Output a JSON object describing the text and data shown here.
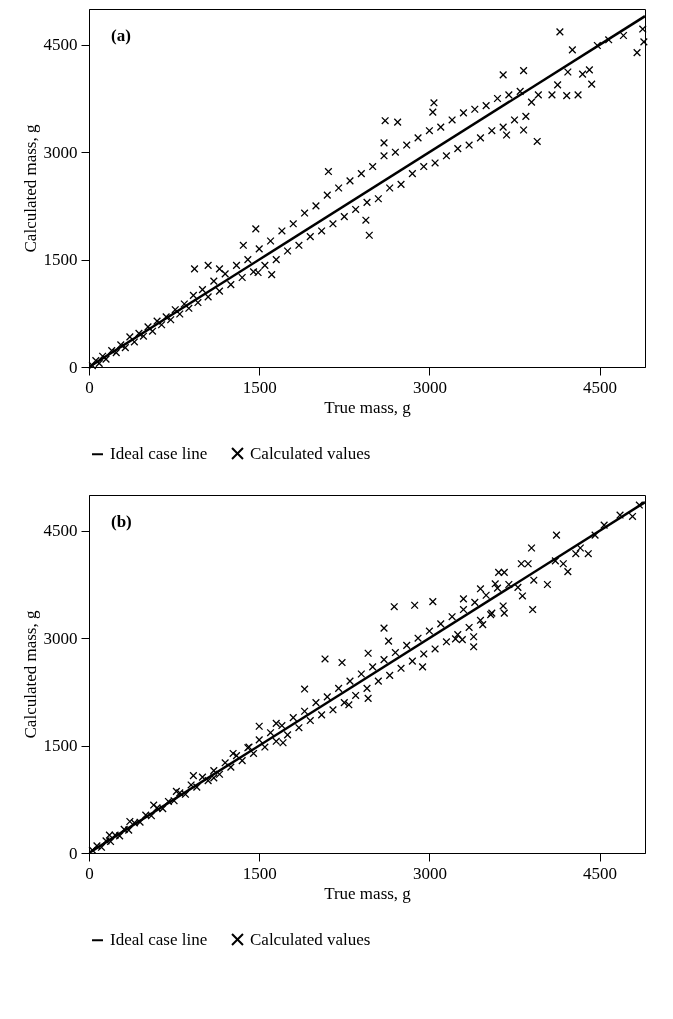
{
  "chart_data": [
    {
      "type": "scatter",
      "title": "(a)",
      "xlabel": "True mass, g",
      "ylabel": "Calculated mass, g",
      "xlim": [
        0,
        4900
      ],
      "ylim": [
        0,
        5000
      ],
      "xticks": [
        0,
        1500,
        3000,
        4500
      ],
      "yticks": [
        0,
        1500,
        3000,
        4500
      ],
      "legend": "bottom",
      "series": [
        {
          "name": "Ideal case line",
          "type": "line",
          "color": "#000000",
          "x": [
            0,
            4900
          ],
          "values": [
            0,
            4900
          ]
        },
        {
          "name": "Calculated values",
          "type": "scatter",
          "marker": "cross",
          "color": "#000000",
          "x": [
            30,
            60,
            90,
            120,
            150,
            200,
            240,
            280,
            320,
            360,
            400,
            440,
            480,
            520,
            560,
            600,
            640,
            680,
            720,
            760,
            800,
            840,
            880,
            920,
            960,
            1000,
            1050,
            1100,
            1150,
            1200,
            1250,
            1300,
            1350,
            1400,
            1450,
            1500,
            1550,
            1600,
            1650,
            1700,
            1750,
            1800,
            1850,
            1900,
            1950,
            2000,
            2050,
            2100,
            2150,
            2200,
            2250,
            2300,
            2350,
            2400,
            2450,
            2500,
            2550,
            2600,
            2650,
            2700,
            2750,
            2800,
            2850,
            2900,
            2950,
            3000,
            3050,
            3100,
            3150,
            3200,
            3250,
            3300,
            3350,
            3400,
            3450,
            3500,
            3550,
            3600,
            3650,
            3700,
            3750,
            3800,
            3850,
            3900,
            3650,
            3830,
            4150,
            4260,
            4480,
            4580,
            4710,
            4880,
            4890,
            4830,
            4430,
            4350,
            4410,
            4210,
            4310,
            4080,
            3960,
            4130,
            4220,
            3950,
            3830,
            3680,
            3040,
            3030,
            2610,
            2720,
            2600,
            2470,
            2440,
            2110,
            1610,
            1490,
            1470,
            1360,
            930,
            1050,
            1150
          ],
          "values": [
            20,
            90,
            50,
            150,
            110,
            230,
            200,
            310,
            270,
            420,
            350,
            470,
            430,
            560,
            500,
            640,
            590,
            700,
            660,
            800,
            740,
            880,
            820,
            1000,
            900,
            1080,
            980,
            1200,
            1060,
            1300,
            1150,
            1420,
            1250,
            1500,
            1330,
            1650,
            1420,
            1760,
            1500,
            1900,
            1620,
            2000,
            1700,
            2150,
            1820,
            2250,
            1900,
            2400,
            2000,
            2500,
            2100,
            2600,
            2200,
            2700,
            2300,
            2800,
            2350,
            2950,
            2500,
            3000,
            2550,
            3100,
            2700,
            3200,
            2800,
            3300,
            2850,
            3350,
            2950,
            3450,
            3050,
            3550,
            3100,
            3600,
            3200,
            3650,
            3300,
            3750,
            3350,
            3800,
            3450,
            3850,
            3500,
            3700,
            4080,
            4140,
            4680,
            4430,
            4490,
            4570,
            4630,
            4720,
            4540,
            4390,
            3950,
            4090,
            4150,
            3790,
            3800,
            3800,
            3800,
            3940,
            4120,
            3150,
            3310,
            3240,
            3690,
            3560,
            3440,
            3420,
            3130,
            1840,
            2050,
            2730,
            1290,
            1320,
            1930,
            1700,
            1370,
            1420,
            1370
          ]
        }
      ]
    },
    {
      "type": "scatter",
      "title": "(b)",
      "xlabel": "True mass, g",
      "ylabel": "Calculated mass, g",
      "xlim": [
        0,
        4900
      ],
      "ylim": [
        0,
        5000
      ],
      "xticks": [
        0,
        1500,
        3000,
        4500
      ],
      "yticks": [
        0,
        1500,
        3000,
        4500
      ],
      "legend": "bottom",
      "series": [
        {
          "name": "Ideal case line",
          "type": "line",
          "color": "#000000",
          "x": [
            0,
            4900
          ],
          "values": [
            0,
            4900
          ]
        },
        {
          "name": "Calculated values",
          "type": "scatter",
          "marker": "cross",
          "color": "#000000",
          "x": [
            30,
            70,
            110,
            150,
            190,
            230,
            270,
            310,
            350,
            400,
            450,
            500,
            550,
            600,
            650,
            700,
            750,
            800,
            850,
            900,
            950,
            1000,
            1050,
            1100,
            1150,
            1200,
            1250,
            1300,
            1350,
            1400,
            1450,
            1500,
            1550,
            1600,
            1650,
            1700,
            1750,
            1800,
            1850,
            1900,
            1950,
            2000,
            2050,
            2100,
            2150,
            2200,
            2250,
            2300,
            2350,
            2400,
            2450,
            2500,
            2550,
            2600,
            2650,
            2700,
            2750,
            2800,
            2850,
            2900,
            2950,
            3000,
            3050,
            3100,
            3150,
            3200,
            3250,
            3300,
            3350,
            3400,
            3450,
            3500,
            3550,
            3600,
            3650,
            3700,
            4850,
            4790,
            4680,
            4540,
            4460,
            4120,
            3900,
            3810,
            3870,
            3610,
            3660,
            3920,
            4040,
            4220,
            4180,
            4110,
            4290,
            4400,
            4330,
            3910,
            3660,
            3390,
            3390,
            3230,
            3290,
            2690,
            2870,
            3030,
            2600,
            2640,
            2940,
            2460,
            3470,
            3540,
            3300,
            3450,
            3580,
            3780,
            3820,
            2080,
            2230,
            2460,
            2290,
            1900,
            1710,
            1650,
            1500,
            1410,
            1270,
            1100,
            920,
            770,
            570,
            360,
            180
          ],
          "values": [
            40,
            100,
            80,
            170,
            160,
            250,
            240,
            330,
            320,
            420,
            430,
            530,
            520,
            630,
            620,
            720,
            730,
            840,
            820,
            950,
            920,
            1060,
            1010,
            1150,
            1100,
            1260,
            1200,
            1360,
            1290,
            1470,
            1390,
            1580,
            1480,
            1680,
            1560,
            1780,
            1650,
            1890,
            1750,
            1980,
            1850,
            2100,
            1930,
            2180,
            2000,
            2300,
            2100,
            2400,
            2200,
            2500,
            2300,
            2600,
            2400,
            2700,
            2480,
            2800,
            2580,
            2900,
            2680,
            3000,
            2780,
            3100,
            2850,
            3200,
            2950,
            3300,
            3050,
            3400,
            3150,
            3500,
            3250,
            3600,
            3350,
            3700,
            3450,
            3750,
            4860,
            4700,
            4720,
            4580,
            4440,
            4440,
            4260,
            4040,
            4040,
            3920,
            3920,
            3810,
            3750,
            3930,
            4040,
            4080,
            4180,
            4180,
            4260,
            3400,
            3350,
            2880,
            3020,
            2990,
            2980,
            3440,
            3460,
            3510,
            3140,
            2960,
            2600,
            2160,
            3190,
            3330,
            3550,
            3690,
            3760,
            3710,
            3590,
            2710,
            2660,
            2790,
            2070,
            2290,
            1540,
            1810,
            1770,
            1480,
            1390,
            1050,
            1080,
            860,
            670,
            440,
            250
          ]
        }
      ]
    }
  ]
}
